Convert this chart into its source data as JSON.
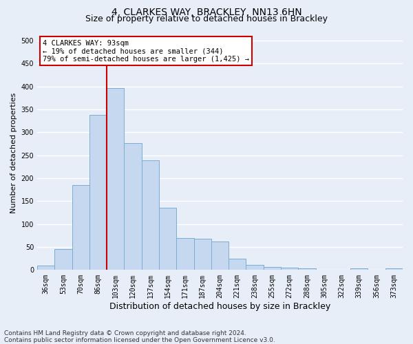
{
  "title": "4, CLARKES WAY, BRACKLEY, NN13 6HN",
  "subtitle": "Size of property relative to detached houses in Brackley",
  "xlabel": "Distribution of detached houses by size in Brackley",
  "ylabel": "Number of detached properties",
  "categories": [
    "36sqm",
    "53sqm",
    "70sqm",
    "86sqm",
    "103sqm",
    "120sqm",
    "137sqm",
    "154sqm",
    "171sqm",
    "187sqm",
    "204sqm",
    "221sqm",
    "238sqm",
    "255sqm",
    "272sqm",
    "288sqm",
    "305sqm",
    "322sqm",
    "339sqm",
    "356sqm",
    "373sqm"
  ],
  "values": [
    9,
    46,
    185,
    338,
    397,
    276,
    239,
    135,
    69,
    68,
    62,
    25,
    11,
    6,
    5,
    4,
    0,
    0,
    4,
    0,
    4
  ],
  "bar_color": "#c5d8f0",
  "bar_edge_color": "#7aadd4",
  "vline_color": "#cc0000",
  "vline_x_index": 3.5,
  "annotation_line1": "4 CLARKES WAY: 93sqm",
  "annotation_line2": "← 19% of detached houses are smaller (344)",
  "annotation_line3": "79% of semi-detached houses are larger (1,425) →",
  "annotation_box_edgecolor": "#cc0000",
  "ylim": [
    0,
    510
  ],
  "yticks": [
    0,
    50,
    100,
    150,
    200,
    250,
    300,
    350,
    400,
    450,
    500
  ],
  "bg_color": "#e8eef8",
  "grid_color": "#ffffff",
  "title_fontsize": 10,
  "subtitle_fontsize": 9,
  "xlabel_fontsize": 9,
  "ylabel_fontsize": 8,
  "tick_fontsize": 7,
  "footnote_fontsize": 6.5,
  "footnote": "Contains HM Land Registry data © Crown copyright and database right 2024.\nContains public sector information licensed under the Open Government Licence v3.0."
}
